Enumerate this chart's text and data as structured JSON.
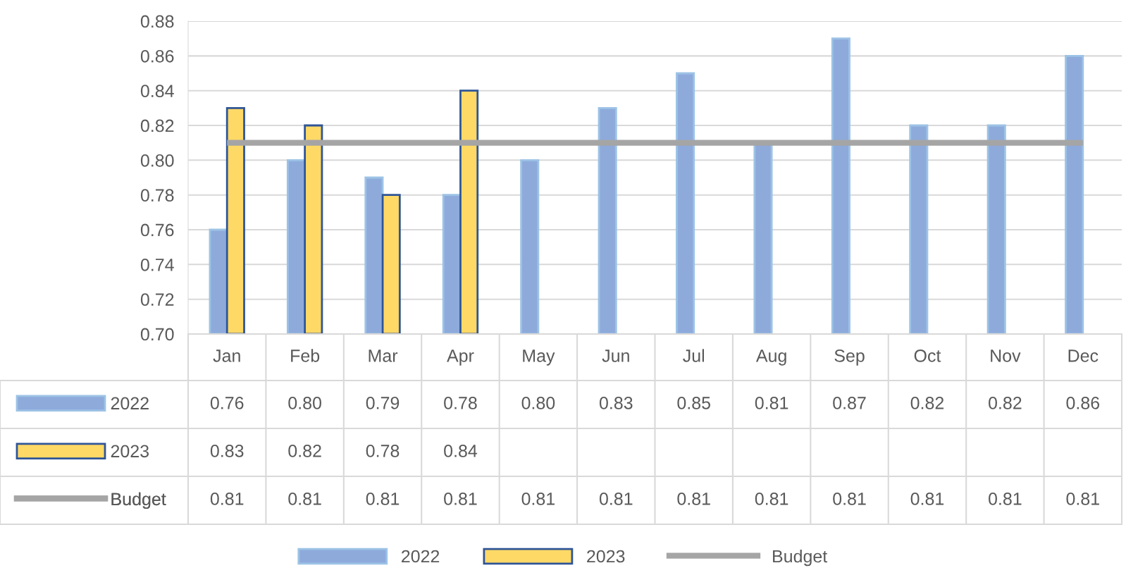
{
  "chart_data": {
    "type": "bar",
    "categories": [
      "Jan",
      "Feb",
      "Mar",
      "Apr",
      "May",
      "Jun",
      "Jul",
      "Aug",
      "Sep",
      "Oct",
      "Nov",
      "Dec"
    ],
    "series": [
      {
        "name": "2022",
        "color": "#8eaadb",
        "values": [
          0.76,
          0.8,
          0.79,
          0.78,
          0.8,
          0.83,
          0.85,
          0.81,
          0.87,
          0.82,
          0.82,
          0.86
        ],
        "value_labels": [
          "0.76",
          "0.80",
          "0.79",
          "0.78",
          "0.80",
          "0.83",
          "0.85",
          "0.81",
          "0.87",
          "0.82",
          "0.82",
          "0.86"
        ]
      },
      {
        "name": "2023",
        "color": "#ffd966",
        "values": [
          0.83,
          0.82,
          0.78,
          0.84,
          null,
          null,
          null,
          null,
          null,
          null,
          null,
          null
        ]
      },
      {
        "name": "Budget",
        "color": "#a5a5a5",
        "type": "line",
        "values": [
          0.81,
          0.81,
          0.81,
          0.81,
          0.81,
          0.81,
          0.81,
          0.81,
          0.81,
          0.81,
          0.81,
          0.81
        ]
      }
    ],
    "ylim": [
      0.7,
      0.88
    ],
    "yticks": [
      {
        "value": 0.7,
        "label": "0.70"
      },
      {
        "value": 0.72,
        "label": "0.72"
      },
      {
        "value": 0.74,
        "label": "0.74"
      },
      {
        "value": 0.76,
        "label": "0.76"
      },
      {
        "value": 0.78,
        "label": "0.78"
      },
      {
        "value": 0.8,
        "label": "0.80"
      },
      {
        "value": 0.82,
        "label": "0.82"
      },
      {
        "value": 0.84,
        "label": "0.84"
      },
      {
        "value": 0.86,
        "label": "0.86"
      },
      {
        "value": 0.88,
        "label": "0.88"
      }
    ],
    "grid": "y",
    "legend": "bottom",
    "data_labels": true
  }
}
